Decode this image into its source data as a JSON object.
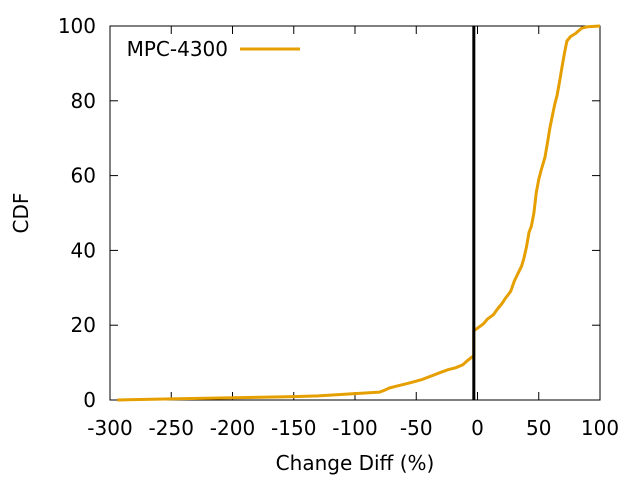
{
  "chart_data": {
    "type": "line",
    "xlabel": "Change Diff (%)",
    "ylabel": "CDF",
    "xlim": [
      -300,
      100
    ],
    "ylim": [
      0,
      100
    ],
    "x_ticks": [
      "-300",
      "-250",
      "-200",
      "-150",
      "-100",
      "-50",
      "0",
      "50",
      "100"
    ],
    "y_ticks": [
      "0",
      "20",
      "40",
      "60",
      "80",
      "100"
    ],
    "grid": false,
    "legend_position": "top-left",
    "vertical_reference_line": {
      "x": -3,
      "color": "#000000"
    },
    "series": [
      {
        "name": "MPC-4300",
        "color": "#e69f00",
        "points": [
          [
            -294,
            0
          ],
          [
            -250,
            0.3
          ],
          [
            -200,
            0.6
          ],
          [
            -150,
            0.9
          ],
          [
            -130,
            1.1
          ],
          [
            -110,
            1.5
          ],
          [
            -100,
            1.7
          ],
          [
            -90,
            1.9
          ],
          [
            -80,
            2.1
          ],
          [
            -76,
            2.6
          ],
          [
            -72,
            3.2
          ],
          [
            -65,
            3.8
          ],
          [
            -55,
            4.6
          ],
          [
            -45,
            5.5
          ],
          [
            -38,
            6.4
          ],
          [
            -30,
            7.4
          ],
          [
            -24,
            8.1
          ],
          [
            -18,
            8.6
          ],
          [
            -12,
            9.4
          ],
          [
            -8,
            10.6
          ],
          [
            -5,
            11.4
          ],
          [
            -3,
            11.8
          ],
          [
            -3,
            18.5
          ],
          [
            0,
            19.2
          ],
          [
            5,
            20.4
          ],
          [
            8,
            21.6
          ],
          [
            13,
            22.8
          ],
          [
            16,
            24.2
          ],
          [
            20,
            25.8
          ],
          [
            23,
            27.3
          ],
          [
            27,
            29.0
          ],
          [
            30,
            31.8
          ],
          [
            33,
            33.8
          ],
          [
            36,
            35.8
          ],
          [
            38,
            38.0
          ],
          [
            40,
            41.0
          ],
          [
            42,
            44.8
          ],
          [
            44,
            46.5
          ],
          [
            46,
            50.0
          ],
          [
            48,
            55.5
          ],
          [
            50,
            59.0
          ],
          [
            52,
            61.5
          ],
          [
            55,
            64.8
          ],
          [
            57,
            68.5
          ],
          [
            59,
            72.6
          ],
          [
            61,
            75.8
          ],
          [
            63,
            79.0
          ],
          [
            65,
            81.5
          ],
          [
            67,
            85.2
          ],
          [
            69,
            89.0
          ],
          [
            71,
            92.8
          ],
          [
            73,
            96.0
          ],
          [
            76,
            97.2
          ],
          [
            80,
            98.0
          ],
          [
            85,
            99.4
          ],
          [
            90,
            99.8
          ],
          [
            100,
            100
          ]
        ]
      }
    ]
  }
}
